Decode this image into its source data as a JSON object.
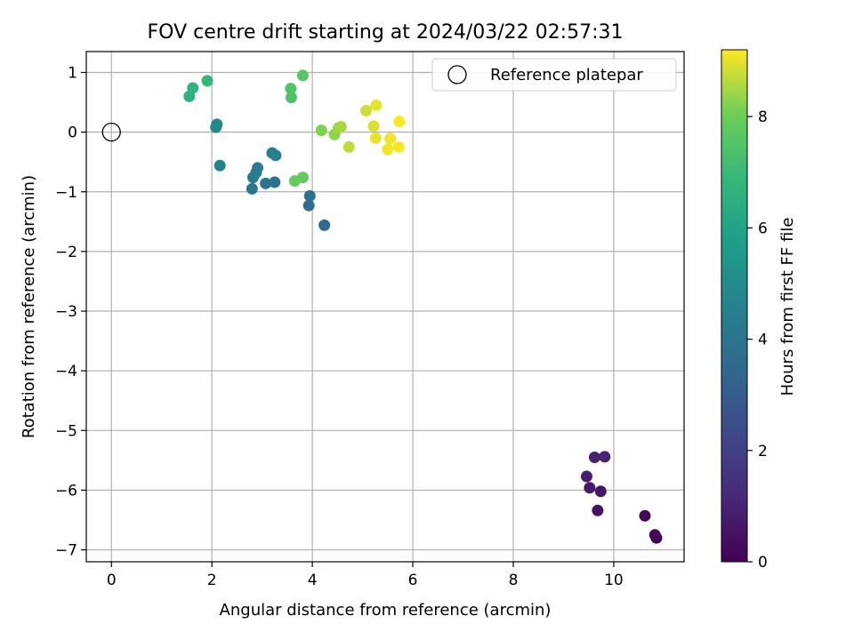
{
  "chart_data": {
    "type": "scatter",
    "title": "FOV centre drift starting at 2024/03/22 02:57:31",
    "xlabel": "Angular distance from reference (arcmin)",
    "ylabel": "Rotation from reference (arcmin)",
    "xlim": [
      -0.5,
      11.4
    ],
    "ylim": [
      -7.2,
      1.35
    ],
    "xticks": [
      0,
      2,
      4,
      6,
      8,
      10
    ],
    "yticks": [
      1,
      0,
      -1,
      -2,
      -3,
      -4,
      -5,
      -6,
      -7
    ],
    "grid": true,
    "legend": {
      "position": "top-right",
      "entries": [
        {
          "label": "Reference platepar",
          "marker": "open-circle"
        }
      ]
    },
    "reference_point": {
      "x": 0,
      "y": 0
    },
    "colorbar": {
      "label": "Hours from first FF file",
      "colormap": "viridis",
      "range": [
        0,
        9.2
      ],
      "ticks": [
        0,
        2,
        4,
        6,
        8
      ]
    },
    "points": [
      {
        "x": 10.85,
        "y": -6.8,
        "t": 0.0
      },
      {
        "x": 10.82,
        "y": -6.75,
        "t": 0.1
      },
      {
        "x": 10.62,
        "y": -6.43,
        "t": 0.2
      },
      {
        "x": 9.68,
        "y": -6.34,
        "t": 0.5
      },
      {
        "x": 9.74,
        "y": -6.02,
        "t": 0.6
      },
      {
        "x": 9.52,
        "y": -5.96,
        "t": 0.7
      },
      {
        "x": 9.46,
        "y": -5.77,
        "t": 0.8
      },
      {
        "x": 9.62,
        "y": -5.45,
        "t": 0.9
      },
      {
        "x": 9.82,
        "y": -5.44,
        "t": 1.0
      },
      {
        "x": 4.24,
        "y": -1.56,
        "t": 3.6
      },
      {
        "x": 3.93,
        "y": -1.23,
        "t": 3.7
      },
      {
        "x": 3.95,
        "y": -1.07,
        "t": 3.8
      },
      {
        "x": 3.25,
        "y": -0.84,
        "t": 3.9
      },
      {
        "x": 3.07,
        "y": -0.86,
        "t": 4.0
      },
      {
        "x": 2.8,
        "y": -0.95,
        "t": 4.1
      },
      {
        "x": 2.82,
        "y": -0.76,
        "t": 4.2
      },
      {
        "x": 2.88,
        "y": -0.68,
        "t": 4.25
      },
      {
        "x": 2.91,
        "y": -0.6,
        "t": 4.3
      },
      {
        "x": 3.27,
        "y": -0.39,
        "t": 4.4
      },
      {
        "x": 3.2,
        "y": -0.35,
        "t": 4.5
      },
      {
        "x": 2.16,
        "y": -0.56,
        "t": 4.6
      },
      {
        "x": 2.08,
        "y": 0.08,
        "t": 4.8
      },
      {
        "x": 2.1,
        "y": 0.13,
        "t": 4.9
      },
      {
        "x": 1.55,
        "y": 0.6,
        "t": 6.6
      },
      {
        "x": 1.62,
        "y": 0.74,
        "t": 6.7
      },
      {
        "x": 1.91,
        "y": 0.86,
        "t": 6.9
      },
      {
        "x": 3.58,
        "y": 0.58,
        "t": 7.4
      },
      {
        "x": 3.57,
        "y": 0.73,
        "t": 7.5
      },
      {
        "x": 3.81,
        "y": 0.95,
        "t": 7.6
      },
      {
        "x": 3.81,
        "y": -0.76,
        "t": 7.8
      },
      {
        "x": 3.65,
        "y": -0.82,
        "t": 7.9
      },
      {
        "x": 4.18,
        "y": 0.03,
        "t": 8.2
      },
      {
        "x": 4.44,
        "y": -0.04,
        "t": 8.3
      },
      {
        "x": 4.52,
        "y": 0.07,
        "t": 8.4
      },
      {
        "x": 4.57,
        "y": 0.09,
        "t": 8.5
      },
      {
        "x": 4.73,
        "y": -0.25,
        "t": 8.7
      },
      {
        "x": 5.07,
        "y": 0.36,
        "t": 8.8
      },
      {
        "x": 5.22,
        "y": 0.1,
        "t": 8.9
      },
      {
        "x": 5.27,
        "y": 0.45,
        "t": 9.0
      },
      {
        "x": 5.26,
        "y": -0.1,
        "t": 9.0
      },
      {
        "x": 5.5,
        "y": -0.29,
        "t": 9.1
      },
      {
        "x": 5.55,
        "y": -0.11,
        "t": 9.1
      },
      {
        "x": 5.72,
        "y": -0.25,
        "t": 9.15
      },
      {
        "x": 5.73,
        "y": 0.18,
        "t": 9.2
      }
    ]
  }
}
